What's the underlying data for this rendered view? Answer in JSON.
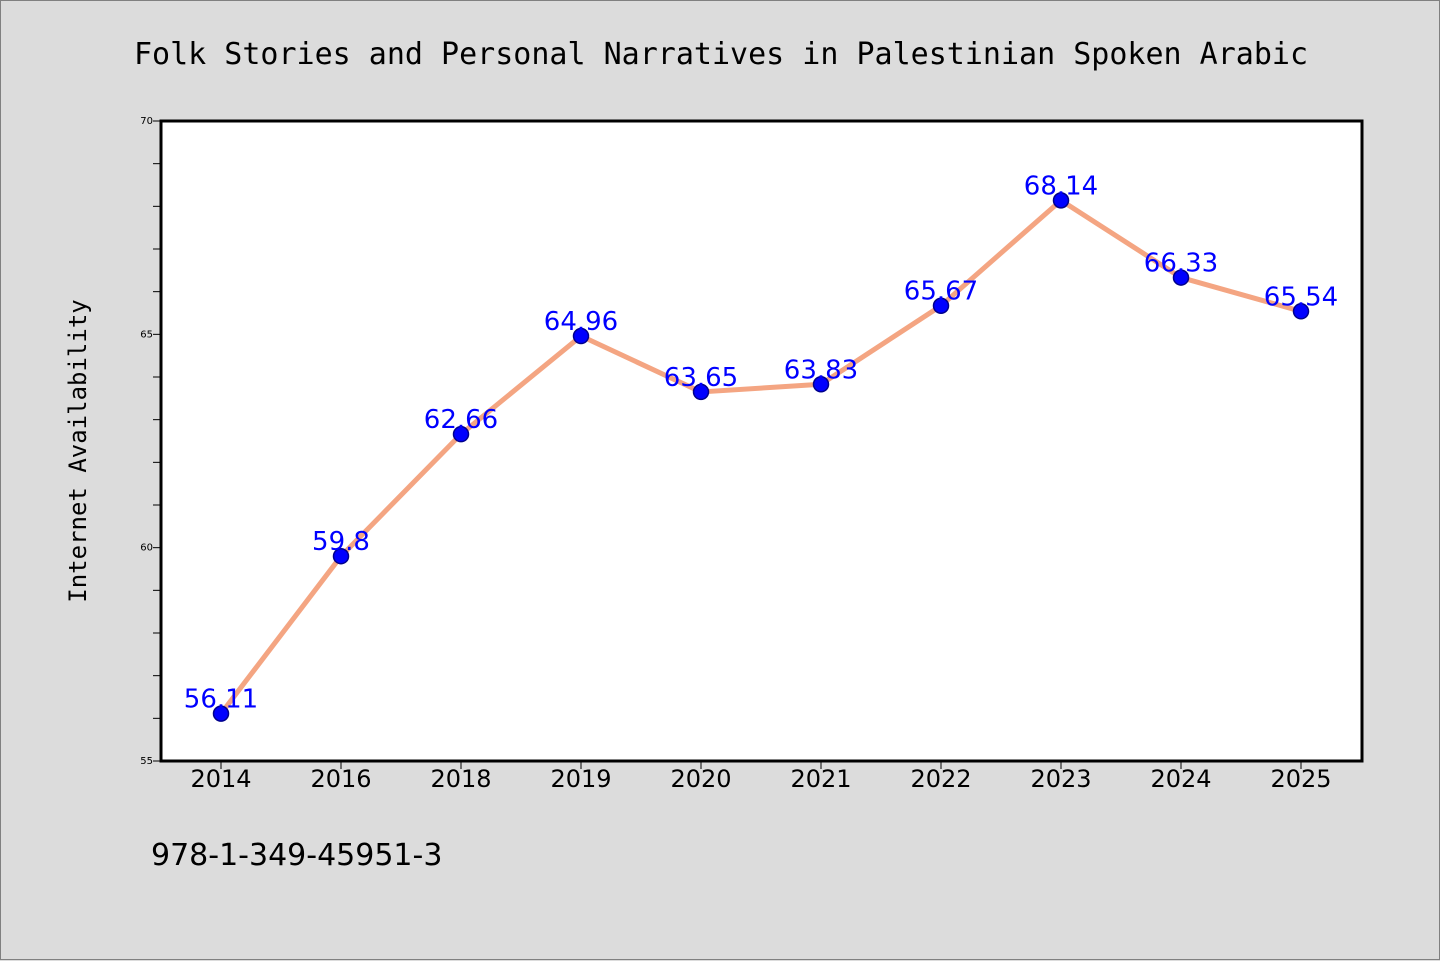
{
  "chart_data": {
    "type": "line",
    "title": "Folk Stories and Personal Narratives in Palestinian Spoken Arabic",
    "xlabel": "",
    "ylabel": "Internet Availability",
    "categories": [
      "2014",
      "2016",
      "2018",
      "2019",
      "2020",
      "2021",
      "2022",
      "2023",
      "2024",
      "2025"
    ],
    "series": [
      {
        "values": [
          56.11,
          59.8,
          62.66,
          64.96,
          63.65,
          63.83,
          65.67,
          68.14,
          66.33,
          65.54
        ]
      }
    ],
    "data_labels": [
      "56.11",
      "59.8",
      "62.66",
      "64.96",
      "63.65",
      "63.83",
      "65.67",
      "68.14",
      "66.33",
      "65.54"
    ],
    "ylim": [
      55,
      70
    ],
    "yticks": [
      "55",
      "60",
      "65",
      "70"
    ],
    "grid": false,
    "legend": "none",
    "colors": {
      "line": "#f4a582",
      "marker": "#0000ff",
      "marker_edge": "#00008b",
      "data_label": "#0000ff",
      "background": "#dcdcdc",
      "plot_background": "#ffffff"
    }
  },
  "footer": {
    "code": "978-1-349-45951-3"
  }
}
